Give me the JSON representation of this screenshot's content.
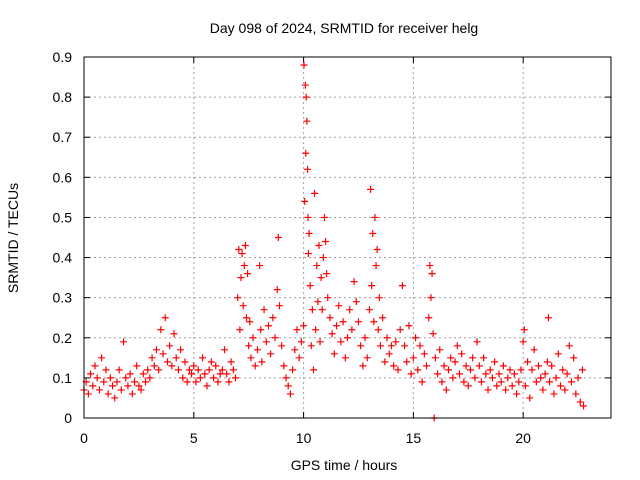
{
  "chart_data": {
    "type": "scatter",
    "title": "Day 098 of 2024, SRMTID for receiver helg",
    "xlabel": "GPS time / hours",
    "ylabel": "SRMTID / TECUs",
    "xlim": [
      0,
      24
    ],
    "ylim": [
      0,
      0.9
    ],
    "x_ticks": [
      0,
      5,
      10,
      15,
      20
    ],
    "x_tick_labels": [
      "0",
      "5",
      "10",
      "15",
      "20"
    ],
    "y_ticks": [
      0,
      0.1,
      0.2,
      0.3,
      0.4,
      0.5,
      0.6,
      0.7,
      0.8,
      0.9
    ],
    "y_tick_labels": [
      "0",
      "0.1",
      "0.2",
      "0.3",
      "0.4",
      "0.5",
      "0.6",
      "0.7",
      "0.8",
      "0.9"
    ],
    "grid": true,
    "marker": "+",
    "color": "#ff0000",
    "series": [
      {
        "name": "SRMTID",
        "points": [
          [
            0.0,
            0.07
          ],
          [
            0.1,
            0.09
          ],
          [
            0.2,
            0.06
          ],
          [
            0.3,
            0.11
          ],
          [
            0.4,
            0.08
          ],
          [
            0.5,
            0.13
          ],
          [
            0.6,
            0.1
          ],
          [
            0.7,
            0.07
          ],
          [
            0.8,
            0.15
          ],
          [
            0.9,
            0.09
          ],
          [
            1.0,
            0.12
          ],
          [
            1.1,
            0.06
          ],
          [
            1.2,
            0.1
          ],
          [
            1.3,
            0.08
          ],
          [
            1.4,
            0.05
          ],
          [
            1.5,
            0.09
          ],
          [
            1.6,
            0.12
          ],
          [
            1.7,
            0.07
          ],
          [
            1.8,
            0.19
          ],
          [
            1.9,
            0.1
          ],
          [
            2.0,
            0.08
          ],
          [
            2.1,
            0.11
          ],
          [
            2.2,
            0.06
          ],
          [
            2.3,
            0.09
          ],
          [
            2.4,
            0.13
          ],
          [
            2.5,
            0.08
          ],
          [
            2.6,
            0.07
          ],
          [
            2.7,
            0.11
          ],
          [
            2.8,
            0.09
          ],
          [
            2.9,
            0.12
          ],
          [
            3.0,
            0.1
          ],
          [
            3.1,
            0.15
          ],
          [
            3.2,
            0.13
          ],
          [
            3.3,
            0.17
          ],
          [
            3.4,
            0.12
          ],
          [
            3.5,
            0.22
          ],
          [
            3.6,
            0.16
          ],
          [
            3.7,
            0.25
          ],
          [
            3.8,
            0.14
          ],
          [
            3.9,
            0.18
          ],
          [
            4.0,
            0.13
          ],
          [
            4.1,
            0.21
          ],
          [
            4.2,
            0.15
          ],
          [
            4.3,
            0.12
          ],
          [
            4.4,
            0.17
          ],
          [
            4.5,
            0.1
          ],
          [
            4.6,
            0.14
          ],
          [
            4.7,
            0.09
          ],
          [
            4.8,
            0.12
          ],
          [
            4.9,
            0.11
          ],
          [
            5.0,
            0.13
          ],
          [
            5.1,
            0.09
          ],
          [
            5.2,
            0.12
          ],
          [
            5.3,
            0.1
          ],
          [
            5.4,
            0.15
          ],
          [
            5.5,
            0.11
          ],
          [
            5.6,
            0.08
          ],
          [
            5.7,
            0.12
          ],
          [
            5.8,
            0.14
          ],
          [
            5.9,
            0.1
          ],
          [
            6.0,
            0.13
          ],
          [
            6.1,
            0.09
          ],
          [
            6.2,
            0.11
          ],
          [
            6.3,
            0.12
          ],
          [
            6.4,
            0.17
          ],
          [
            6.5,
            0.11
          ],
          [
            6.6,
            0.09
          ],
          [
            6.7,
            0.14
          ],
          [
            6.8,
            0.12
          ],
          [
            6.9,
            0.1
          ],
          [
            7.0,
            0.3
          ],
          [
            7.05,
            0.42
          ],
          [
            7.1,
            0.22
          ],
          [
            7.15,
            0.35
          ],
          [
            7.2,
            0.41
          ],
          [
            7.25,
            0.28
          ],
          [
            7.3,
            0.38
          ],
          [
            7.35,
            0.43
          ],
          [
            7.4,
            0.25
          ],
          [
            7.45,
            0.36
          ],
          [
            7.5,
            0.18
          ],
          [
            7.55,
            0.24
          ],
          [
            7.6,
            0.15
          ],
          [
            7.7,
            0.2
          ],
          [
            7.8,
            0.13
          ],
          [
            7.9,
            0.17
          ],
          [
            8.0,
            0.38
          ],
          [
            8.05,
            0.22
          ],
          [
            8.1,
            0.14
          ],
          [
            8.2,
            0.27
          ],
          [
            8.3,
            0.19
          ],
          [
            8.4,
            0.23
          ],
          [
            8.5,
            0.16
          ],
          [
            8.6,
            0.25
          ],
          [
            8.7,
            0.2
          ],
          [
            8.8,
            0.32
          ],
          [
            8.85,
            0.45
          ],
          [
            8.9,
            0.28
          ],
          [
            9.0,
            0.18
          ],
          [
            9.1,
            0.13
          ],
          [
            9.2,
            0.1
          ],
          [
            9.3,
            0.08
          ],
          [
            9.4,
            0.06
          ],
          [
            9.5,
            0.12
          ],
          [
            9.6,
            0.17
          ],
          [
            9.7,
            0.22
          ],
          [
            9.8,
            0.15
          ],
          [
            9.9,
            0.19
          ],
          [
            10.0,
            0.23
          ],
          [
            10.02,
            0.88
          ],
          [
            10.05,
            0.54
          ],
          [
            10.08,
            0.83
          ],
          [
            10.1,
            0.66
          ],
          [
            10.12,
            0.8
          ],
          [
            10.15,
            0.74
          ],
          [
            10.18,
            0.62
          ],
          [
            10.2,
            0.5
          ],
          [
            10.22,
            0.41
          ],
          [
            10.25,
            0.46
          ],
          [
            10.3,
            0.33
          ],
          [
            10.35,
            0.18
          ],
          [
            10.4,
            0.27
          ],
          [
            10.45,
            0.12
          ],
          [
            10.5,
            0.56
          ],
          [
            10.55,
            0.22
          ],
          [
            10.6,
            0.38
          ],
          [
            10.65,
            0.29
          ],
          [
            10.7,
            0.43
          ],
          [
            10.75,
            0.19
          ],
          [
            10.8,
            0.35
          ],
          [
            10.85,
            0.27
          ],
          [
            10.9,
            0.4
          ],
          [
            10.95,
            0.5
          ],
          [
            11.0,
            0.44
          ],
          [
            11.05,
            0.36
          ],
          [
            11.1,
            0.3
          ],
          [
            11.2,
            0.25
          ],
          [
            11.3,
            0.21
          ],
          [
            11.4,
            0.16
          ],
          [
            11.5,
            0.23
          ],
          [
            11.6,
            0.28
          ],
          [
            11.7,
            0.19
          ],
          [
            11.8,
            0.24
          ],
          [
            11.9,
            0.15
          ],
          [
            12.0,
            0.2
          ],
          [
            12.1,
            0.27
          ],
          [
            12.2,
            0.22
          ],
          [
            12.3,
            0.34
          ],
          [
            12.4,
            0.29
          ],
          [
            12.5,
            0.24
          ],
          [
            12.6,
            0.18
          ],
          [
            12.7,
            0.13
          ],
          [
            12.8,
            0.2
          ],
          [
            12.9,
            0.15
          ],
          [
            13.0,
            0.27
          ],
          [
            13.05,
            0.57
          ],
          [
            13.1,
            0.33
          ],
          [
            13.15,
            0.46
          ],
          [
            13.2,
            0.24
          ],
          [
            13.25,
            0.5
          ],
          [
            13.3,
            0.38
          ],
          [
            13.35,
            0.42
          ],
          [
            13.4,
            0.22
          ],
          [
            13.45,
            0.3
          ],
          [
            13.5,
            0.18
          ],
          [
            13.6,
            0.25
          ],
          [
            13.7,
            0.14
          ],
          [
            13.8,
            0.2
          ],
          [
            13.9,
            0.16
          ],
          [
            14.0,
            0.18
          ],
          [
            14.1,
            0.13
          ],
          [
            14.2,
            0.19
          ],
          [
            14.3,
            0.12
          ],
          [
            14.4,
            0.22
          ],
          [
            14.5,
            0.33
          ],
          [
            14.6,
            0.18
          ],
          [
            14.7,
            0.14
          ],
          [
            14.8,
            0.23
          ],
          [
            14.9,
            0.11
          ],
          [
            15.0,
            0.15
          ],
          [
            15.1,
            0.2
          ],
          [
            15.2,
            0.12
          ],
          [
            15.3,
            0.18
          ],
          [
            15.4,
            0.09
          ],
          [
            15.5,
            0.16
          ],
          [
            15.6,
            0.13
          ],
          [
            15.7,
            0.25
          ],
          [
            15.75,
            0.38
          ],
          [
            15.8,
            0.3
          ],
          [
            15.85,
            0.36
          ],
          [
            15.9,
            0.21
          ],
          [
            15.95,
            0.0
          ],
          [
            16.0,
            0.15
          ],
          [
            16.1,
            0.11
          ],
          [
            16.2,
            0.17
          ],
          [
            16.3,
            0.09
          ],
          [
            16.4,
            0.13
          ],
          [
            16.5,
            0.07
          ],
          [
            16.6,
            0.12
          ],
          [
            16.7,
            0.15
          ],
          [
            16.8,
            0.1
          ],
          [
            16.9,
            0.14
          ],
          [
            17.0,
            0.18
          ],
          [
            17.1,
            0.11
          ],
          [
            17.2,
            0.16
          ],
          [
            17.3,
            0.09
          ],
          [
            17.4,
            0.13
          ],
          [
            17.5,
            0.08
          ],
          [
            17.6,
            0.12
          ],
          [
            17.7,
            0.15
          ],
          [
            17.8,
            0.1
          ],
          [
            17.9,
            0.19
          ],
          [
            18.0,
            0.13
          ],
          [
            18.1,
            0.09
          ],
          [
            18.2,
            0.15
          ],
          [
            18.3,
            0.11
          ],
          [
            18.4,
            0.07
          ],
          [
            18.5,
            0.12
          ],
          [
            18.6,
            0.1
          ],
          [
            18.7,
            0.14
          ],
          [
            18.8,
            0.08
          ],
          [
            18.9,
            0.11
          ],
          [
            19.0,
            0.09
          ],
          [
            19.1,
            0.13
          ],
          [
            19.2,
            0.07
          ],
          [
            19.3,
            0.1
          ],
          [
            19.4,
            0.12
          ],
          [
            19.5,
            0.08
          ],
          [
            19.6,
            0.11
          ],
          [
            19.7,
            0.06
          ],
          [
            19.8,
            0.09
          ],
          [
            19.9,
            0.12
          ],
          [
            20.0,
            0.19
          ],
          [
            20.05,
            0.22
          ],
          [
            20.1,
            0.08
          ],
          [
            20.2,
            0.14
          ],
          [
            20.3,
            0.05
          ],
          [
            20.4,
            0.12
          ],
          [
            20.5,
            0.17
          ],
          [
            20.6,
            0.09
          ],
          [
            20.7,
            0.13
          ],
          [
            20.8,
            0.1
          ],
          [
            20.9,
            0.07
          ],
          [
            21.0,
            0.11
          ],
          [
            21.1,
            0.14
          ],
          [
            21.15,
            0.25
          ],
          [
            21.2,
            0.09
          ],
          [
            21.3,
            0.13
          ],
          [
            21.4,
            0.06
          ],
          [
            21.5,
            0.1
          ],
          [
            21.6,
            0.16
          ],
          [
            21.7,
            0.08
          ],
          [
            21.8,
            0.12
          ],
          [
            21.9,
            0.07
          ],
          [
            22.0,
            0.11
          ],
          [
            22.1,
            0.18
          ],
          [
            22.2,
            0.09
          ],
          [
            22.3,
            0.15
          ],
          [
            22.4,
            0.06
          ],
          [
            22.5,
            0.1
          ],
          [
            22.6,
            0.04
          ],
          [
            22.7,
            0.12
          ],
          [
            22.75,
            0.03
          ]
        ]
      }
    ]
  }
}
